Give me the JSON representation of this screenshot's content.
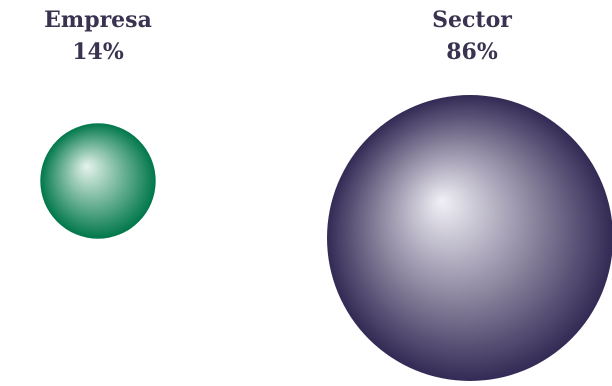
{
  "chart_data": {
    "type": "bubble",
    "series": [
      {
        "name": "Empresa",
        "value": 14,
        "value_label": "14%",
        "color": "#00774a",
        "highlight": "#e6f3ec"
      },
      {
        "name": "Sector",
        "value": 86,
        "value_label": "86%",
        "color": "#332a55",
        "highlight": "#f1f0f6"
      }
    ],
    "unit": "%",
    "background": "#ffffff",
    "label_color": "#3a3350"
  }
}
